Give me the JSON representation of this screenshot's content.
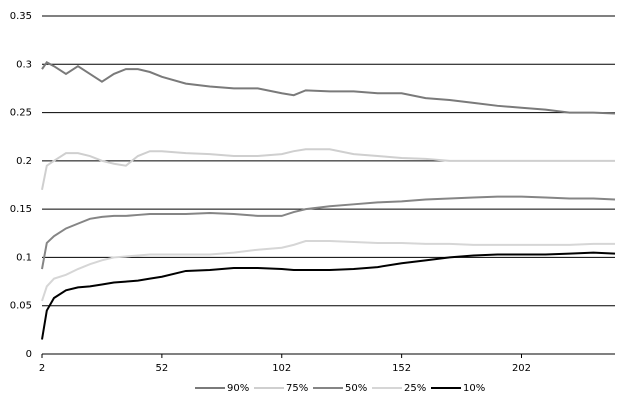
{
  "chart_data": {
    "type": "line",
    "x": [
      2,
      4,
      7,
      12,
      17,
      22,
      27,
      32,
      37,
      42,
      47,
      52,
      62,
      72,
      82,
      92,
      102,
      107,
      112,
      122,
      132,
      142,
      152,
      162,
      172,
      182,
      192,
      202,
      212,
      222,
      232,
      241
    ],
    "series": [
      {
        "name": "90%",
        "color": "#7a7a7a",
        "values": [
          0.295,
          0.302,
          0.298,
          0.29,
          0.298,
          0.29,
          0.282,
          0.29,
          0.295,
          0.295,
          0.292,
          0.287,
          0.28,
          0.277,
          0.275,
          0.275,
          0.27,
          0.268,
          0.273,
          0.272,
          0.272,
          0.27,
          0.27,
          0.265,
          0.263,
          0.26,
          0.257,
          0.255,
          0.253,
          0.25,
          0.25,
          0.249
        ]
      },
      {
        "name": "75%",
        "color": "#cfcfcf",
        "values": [
          0.17,
          0.195,
          0.2,
          0.208,
          0.208,
          0.205,
          0.2,
          0.197,
          0.195,
          0.205,
          0.21,
          0.21,
          0.208,
          0.207,
          0.205,
          0.205,
          0.207,
          0.21,
          0.212,
          0.212,
          0.207,
          0.205,
          0.203,
          0.202,
          0.2,
          0.2,
          0.2,
          0.2,
          0.2,
          0.2,
          0.2,
          0.2
        ]
      },
      {
        "name": "50%",
        "color": "#858585",
        "values": [
          0.088,
          0.115,
          0.122,
          0.13,
          0.135,
          0.14,
          0.142,
          0.143,
          0.143,
          0.144,
          0.145,
          0.145,
          0.145,
          0.146,
          0.145,
          0.143,
          0.143,
          0.147,
          0.15,
          0.153,
          0.155,
          0.157,
          0.158,
          0.16,
          0.161,
          0.162,
          0.163,
          0.163,
          0.162,
          0.161,
          0.161,
          0.16
        ]
      },
      {
        "name": "25%",
        "color": "#d6d6d6",
        "values": [
          0.055,
          0.07,
          0.078,
          0.082,
          0.088,
          0.093,
          0.097,
          0.1,
          0.101,
          0.102,
          0.103,
          0.103,
          0.103,
          0.103,
          0.105,
          0.108,
          0.11,
          0.113,
          0.117,
          0.117,
          0.116,
          0.115,
          0.115,
          0.114,
          0.114,
          0.113,
          0.113,
          0.113,
          0.113,
          0.113,
          0.114,
          0.114
        ]
      },
      {
        "name": "10%",
        "color": "#000000",
        "values": [
          0.015,
          0.045,
          0.058,
          0.066,
          0.069,
          0.07,
          0.072,
          0.074,
          0.075,
          0.076,
          0.078,
          0.08,
          0.086,
          0.087,
          0.089,
          0.089,
          0.088,
          0.087,
          0.087,
          0.087,
          0.088,
          0.09,
          0.094,
          0.097,
          0.1,
          0.102,
          0.103,
          0.103,
          0.103,
          0.104,
          0.105,
          0.104
        ]
      }
    ],
    "xlim": [
      2,
      241
    ],
    "xticks": [
      2,
      52,
      102,
      152,
      202
    ],
    "ylim": [
      0,
      0.35
    ],
    "yticks": [
      0,
      0.05,
      0.1,
      0.15,
      0.2,
      0.25,
      0.3,
      0.35
    ],
    "grid": true,
    "legend": "bottom"
  }
}
